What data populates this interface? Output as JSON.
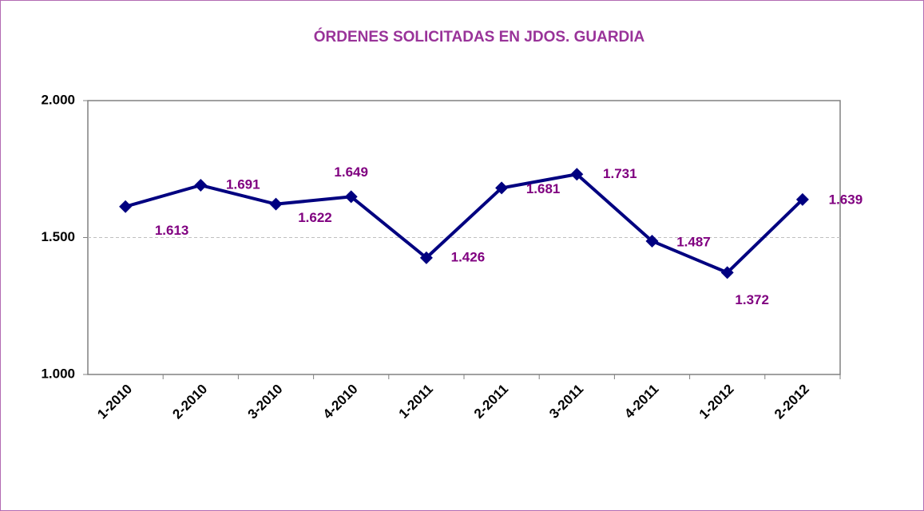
{
  "chart_data": {
    "type": "line",
    "title": "ÓRDENES SOLICITADAS EN JDOS. GUARDIA",
    "categories": [
      "1-2010",
      "2-2010",
      "3-2010",
      "4-2010",
      "1-2011",
      "2-2011",
      "3-2011",
      "4-2011",
      "1-2012",
      "2-2012"
    ],
    "series": [
      {
        "name": "Órdenes",
        "color": "#000080",
        "values": [
          1613,
          1691,
          1622,
          1649,
          1426,
          1681,
          1731,
          1487,
          1372,
          1639
        ],
        "value_labels": [
          "1.613",
          "1.691",
          "1.622",
          "1.649",
          "1.426",
          "1.681",
          "1.731",
          "1.487",
          "1.372",
          "1.639"
        ]
      }
    ],
    "ylim": [
      1000,
      2000
    ],
    "yticks": [
      {
        "value": 1000,
        "label": "1.000"
      },
      {
        "value": 1500,
        "label": "1.500"
      },
      {
        "value": 2000,
        "label": "2.000"
      }
    ],
    "grid": true
  }
}
